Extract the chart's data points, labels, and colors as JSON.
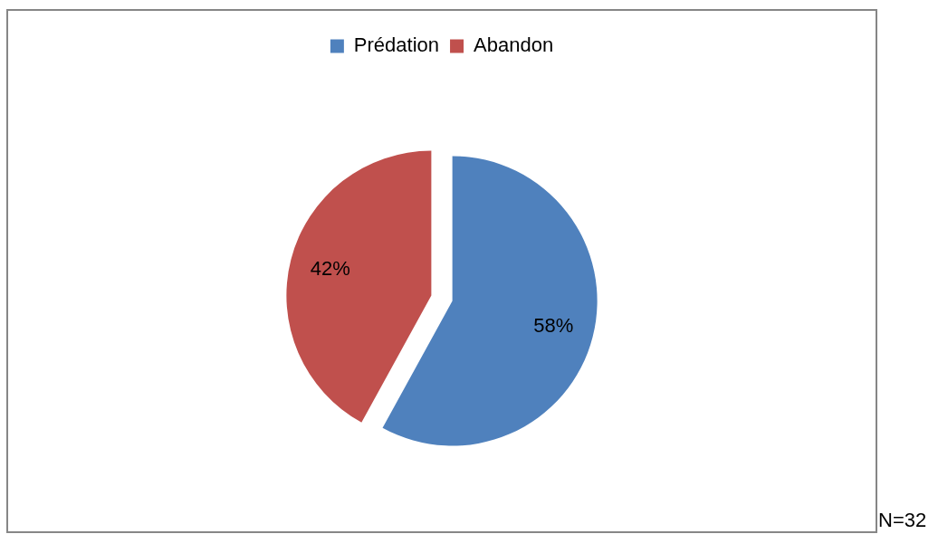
{
  "chart_data": {
    "type": "pie",
    "categories": [
      "Prédation",
      "Abandon"
    ],
    "values": [
      58,
      42
    ],
    "colors": [
      "#4f81bd",
      "#c0504d"
    ],
    "value_labels": [
      "58%",
      "42%"
    ],
    "legend": "top",
    "annotations": [
      "N=32"
    ]
  }
}
